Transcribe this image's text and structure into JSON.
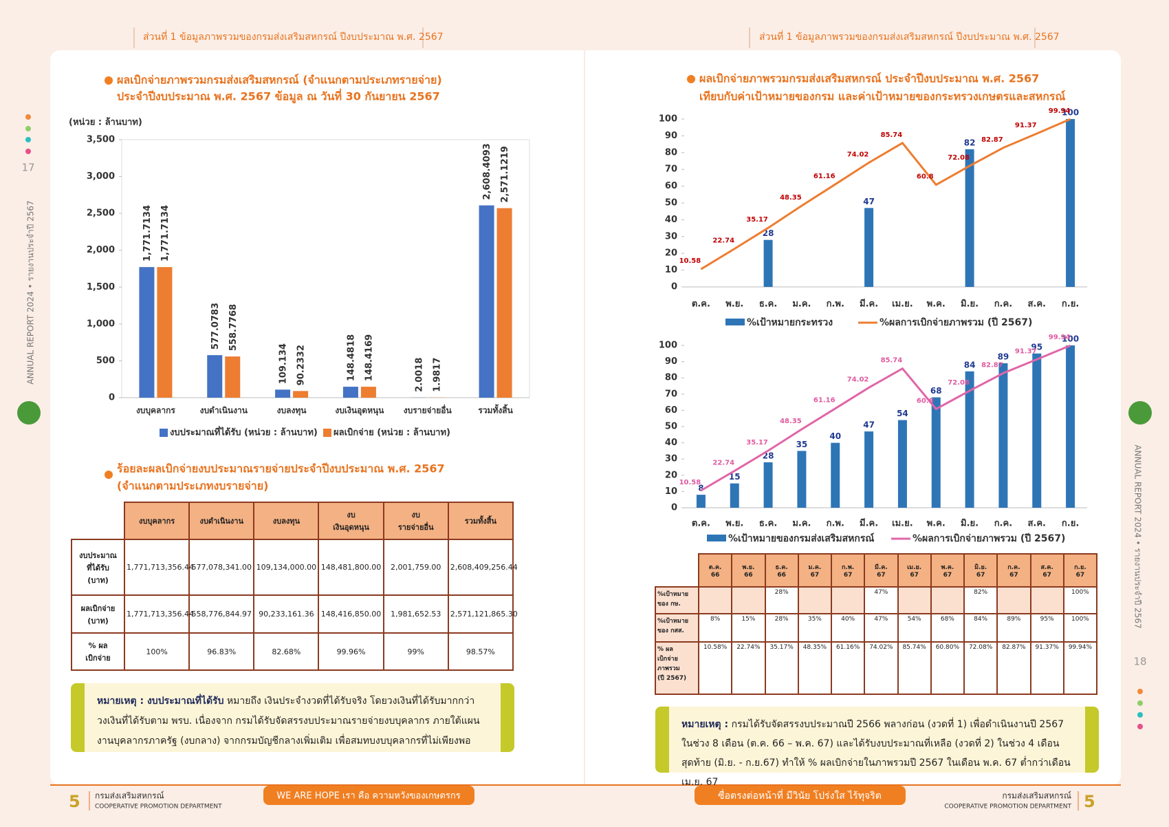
{
  "header": {
    "left": "ส่วนที่ 1 ข้อมูลภาพรวมของกรมส่งเสริมสหกรณ์ ปีงบประมาณ พ.ศ. 2567",
    "right": "ส่วนที่ 1 ข้อมูลภาพรวมของกรมส่งเสริมสหกรณ์ ปีงบประมาณ พ.ศ. 2567"
  },
  "side": {
    "left": "ANNUAL REPORT 2024 • รายงานประจำปี 2567",
    "right": "ANNUAL REPORT 2024 • รายงานประจำปี 2567",
    "page_left": "17",
    "page_right": "18"
  },
  "chart_data": [
    {
      "type": "bar",
      "title": "ผลเบิกจ่ายภาพรวมกรมส่งเสริมสหกรณ์ (จำแนกตามประเภทรายจ่าย)",
      "subtitle": "ประจำปีงบประมาณ พ.ศ. 2567 ข้อมูล ณ วันที่ 30 กันยายน 2567",
      "unit_label": "(หน่วย : ล้านบาท)",
      "categories": [
        "งบบุคลากร",
        "งบดำเนินงาน",
        "งบลงทุน",
        "งบเงินอุดหนุน",
        "งบรายจ่ายอื่น",
        "รวมทั้งสิ้น"
      ],
      "series": [
        {
          "name": "งบประมาณที่ได้รับ (หน่วย : ล้านบาท)",
          "color": "#4472c4",
          "values": [
            1771.7134,
            577.0783,
            109.134,
            148.4818,
            2.0018,
            2608.4093
          ],
          "value_labels": [
            "1,771.7134",
            "577.0783",
            "109.134",
            "148.4818",
            "2.0018",
            "2,608.4093"
          ]
        },
        {
          "name": "ผลเบิกจ่าย (หน่วย : ล้านบาท)",
          "color": "#ed7d31",
          "values": [
            1771.7134,
            558.7768,
            90.2332,
            148.4169,
            1.9817,
            2571.1219
          ],
          "value_labels": [
            "1,771.7134",
            "558.7768",
            "90.2332",
            "148.4169",
            "1.9817",
            "2,571.1219"
          ]
        }
      ],
      "ylim": [
        0,
        3500
      ],
      "yticks": [
        0,
        500,
        {
          "value": 1000,
          "label": "1,000"
        },
        {
          "value": 1500,
          "label": "1,500"
        },
        {
          "value": 2000,
          "label": "2,000"
        },
        {
          "value": 2500,
          "label": "2,500"
        },
        {
          "value": 3000,
          "label": "3,000"
        },
        {
          "value": 3500,
          "label": "3,500"
        }
      ]
    },
    {
      "type": "bar",
      "title": "ผลเบิกจ่ายภาพรวมกรมส่งเสริมสหกรณ์ ประจำปีงบประมาณ พ.ศ. 2567",
      "subtitle": "เทียบกับค่าเป้าหมายของกรม และค่าเป้าหมายของกระทรวงเกษตรและสหกรณ์",
      "categories": [
        "ต.ค.",
        "พ.ย.",
        "ธ.ค.",
        "ม.ค.",
        "ก.พ.",
        "มี.ค.",
        "เม.ย.",
        "พ.ค.",
        "มิ.ย.",
        "ก.ค.",
        "ส.ค.",
        "ก.ย."
      ],
      "series": [
        {
          "name": "%เป้าหมายกระทรวง",
          "color": "#2e75b6",
          "values": [
            null,
            null,
            28,
            null,
            null,
            47,
            null,
            null,
            82,
            null,
            null,
            100
          ]
        },
        {
          "name": "%ผลการเบิกจ่ายภาพรวม (ปี 2567)",
          "type": "line",
          "color": "#ed7d31",
          "values": [
            10.58,
            22.74,
            35.17,
            48.35,
            61.16,
            74.02,
            85.74,
            60.8,
            72.08,
            82.87,
            91.37,
            99.94
          ]
        }
      ],
      "ylim": [
        0,
        100
      ],
      "yticks": [
        0,
        10,
        20,
        30,
        40,
        50,
        60,
        70,
        80,
        90,
        100
      ]
    },
    {
      "type": "bar",
      "categories": [
        "ต.ค.",
        "พ.ย.",
        "ธ.ค.",
        "ม.ค.",
        "ก.พ.",
        "มี.ค.",
        "เม.ย.",
        "พ.ค.",
        "มิ.ย.",
        "ก.ค.",
        "ส.ค.",
        "ก.ย."
      ],
      "series": [
        {
          "name": "%เป้าหมายของกรมส่งเสริมสหกรณ์",
          "color": "#2e75b6",
          "values": [
            8,
            15,
            28,
            35,
            40,
            47,
            54,
            68,
            84,
            89,
            95,
            100
          ]
        },
        {
          "name": "%ผลการเบิกจ่ายภาพรวม (ปี 2567)",
          "type": "line",
          "color": "#e066a8",
          "values": [
            10.58,
            22.74,
            35.17,
            48.35,
            61.16,
            74.02,
            85.74,
            60.8,
            72.08,
            82.87,
            91.37,
            99.94
          ]
        }
      ],
      "ylim": [
        0,
        100
      ],
      "yticks": [
        0,
        10,
        20,
        30,
        40,
        50,
        60,
        70,
        80,
        90,
        100
      ]
    }
  ],
  "table_left": {
    "title": "ร้อยละผลเบิกจ่ายงบประมาณรายจ่ายประจำปีงบประมาณ พ.ศ. 2567",
    "subtitle": "(จำแนกตามประเภทงบรายจ่าย)",
    "columns": [
      "งบบุคลากร",
      "งบดำเนินงาน",
      "งบลงทุน",
      "งบ\nเงินอุดหนุน",
      "งบ\nรายจ่ายอื่น",
      "รวมทั้งสิ้น"
    ],
    "rows": [
      {
        "label": "งบประมาณ\nที่ได้รับ\n(บาท)",
        "cells": [
          "1,771,713,356.44",
          "577,078,341.00",
          "109,134,000.00",
          "148,481,800.00",
          "2,001,759.00",
          "2,608,409,256.44"
        ]
      },
      {
        "label": "ผลเบิกจ่าย\n(บาท)",
        "cells": [
          "1,771,713,356.44",
          "558,776,844.97",
          "90,233,161.36",
          "148,416,850.00",
          "1,981,652.53",
          "2,571,121,865.30"
        ]
      },
      {
        "label": "% ผล\nเบิกจ่าย",
        "cells": [
          "100%",
          "96.83%",
          "82.68%",
          "99.96%",
          "99%",
          "98.57%"
        ]
      }
    ]
  },
  "note_left": {
    "label": "หมายเหตุ : งบประมาณที่ได้รับ",
    "text": "หมายถึง เงินประจำงวดที่ได้รับจริง โดยวงเงินที่ได้รับมากกว่าวงเงินที่ได้รับตาม พรบ. เนื่องจาก กรมได้รับจัดสรรงบประมาณรายจ่ายงบบุคลากร ภายใต้แผนงานบุคลากรภาครัฐ (งบกลาง) จากกรมบัญชีกลางเพิ่มเติม เพื่อสมทบงบบุคลากรที่ไม่เพียงพอ"
  },
  "table_right": {
    "columns": [
      "ต.ค.\n66",
      "พ.ย.\n66",
      "ธ.ค.\n66",
      "ม.ค.\n67",
      "ก.พ.\n67",
      "มี.ค.\n67",
      "เม.ย.\n67",
      "พ.ค.\n67",
      "มิ.ย.\n67",
      "ก.ค.\n67",
      "ส.ค.\n67",
      "ก.ย.\n67"
    ],
    "rows": [
      {
        "label": "%เป้าหมาย\nของ กษ.",
        "cells": [
          null,
          null,
          "28%",
          null,
          null,
          "47%",
          null,
          null,
          "82%",
          null,
          null,
          "100%"
        ]
      },
      {
        "label": "%เป้าหมาย\nของ กสส.",
        "cells": [
          "8%",
          "15%",
          "28%",
          "35%",
          "40%",
          "47%",
          "54%",
          "68%",
          "84%",
          "89%",
          "95%",
          "100%"
        ]
      },
      {
        "label": "% ผล\nเบิกจ่าย\nภาพรวม\n(ปี 2567)",
        "cells": [
          "10.58%",
          "22.74%",
          "35.17%",
          "48.35%",
          "61.16%",
          "74.02%",
          "85.74%",
          "60.80%",
          "72.08%",
          "82.87%",
          "91.37%",
          "99.94%"
        ]
      }
    ]
  },
  "note_right": {
    "label": "หมายเหตุ :",
    "text": "กรมได้รับจัดสรรงบประมาณปี 2566 พลางก่อน (งวดที่ 1) เพื่อดำเนินงานปี 2567 ในช่วง 8 เดือน (ต.ค. 66 – พ.ค. 67) และได้รับงบประมาณที่เหลือ (งวดที่ 2) ในช่วง 4 เดือนสุดท้าย (มิ.ย. - ก.ย.67) ทำให้ % ผลเบิกจ่ายในภาพรวมปี 2567 ในเดือน พ.ค. 67 ต่ำกว่าเดือน เม.ย. 67"
  },
  "footer": {
    "org_th": "กรมส่งเสริมสหกรณ์",
    "org_en": "COOPERATIVE PROMOTION DEPARTMENT",
    "slogan_left": "WE ARE HOPE เรา คือ ความหวังของเกษตรกร",
    "slogan_right": "ซื่อตรงต่อหน้าที่ มีวินัย โปร่งใส ไร้ทุจริต"
  }
}
